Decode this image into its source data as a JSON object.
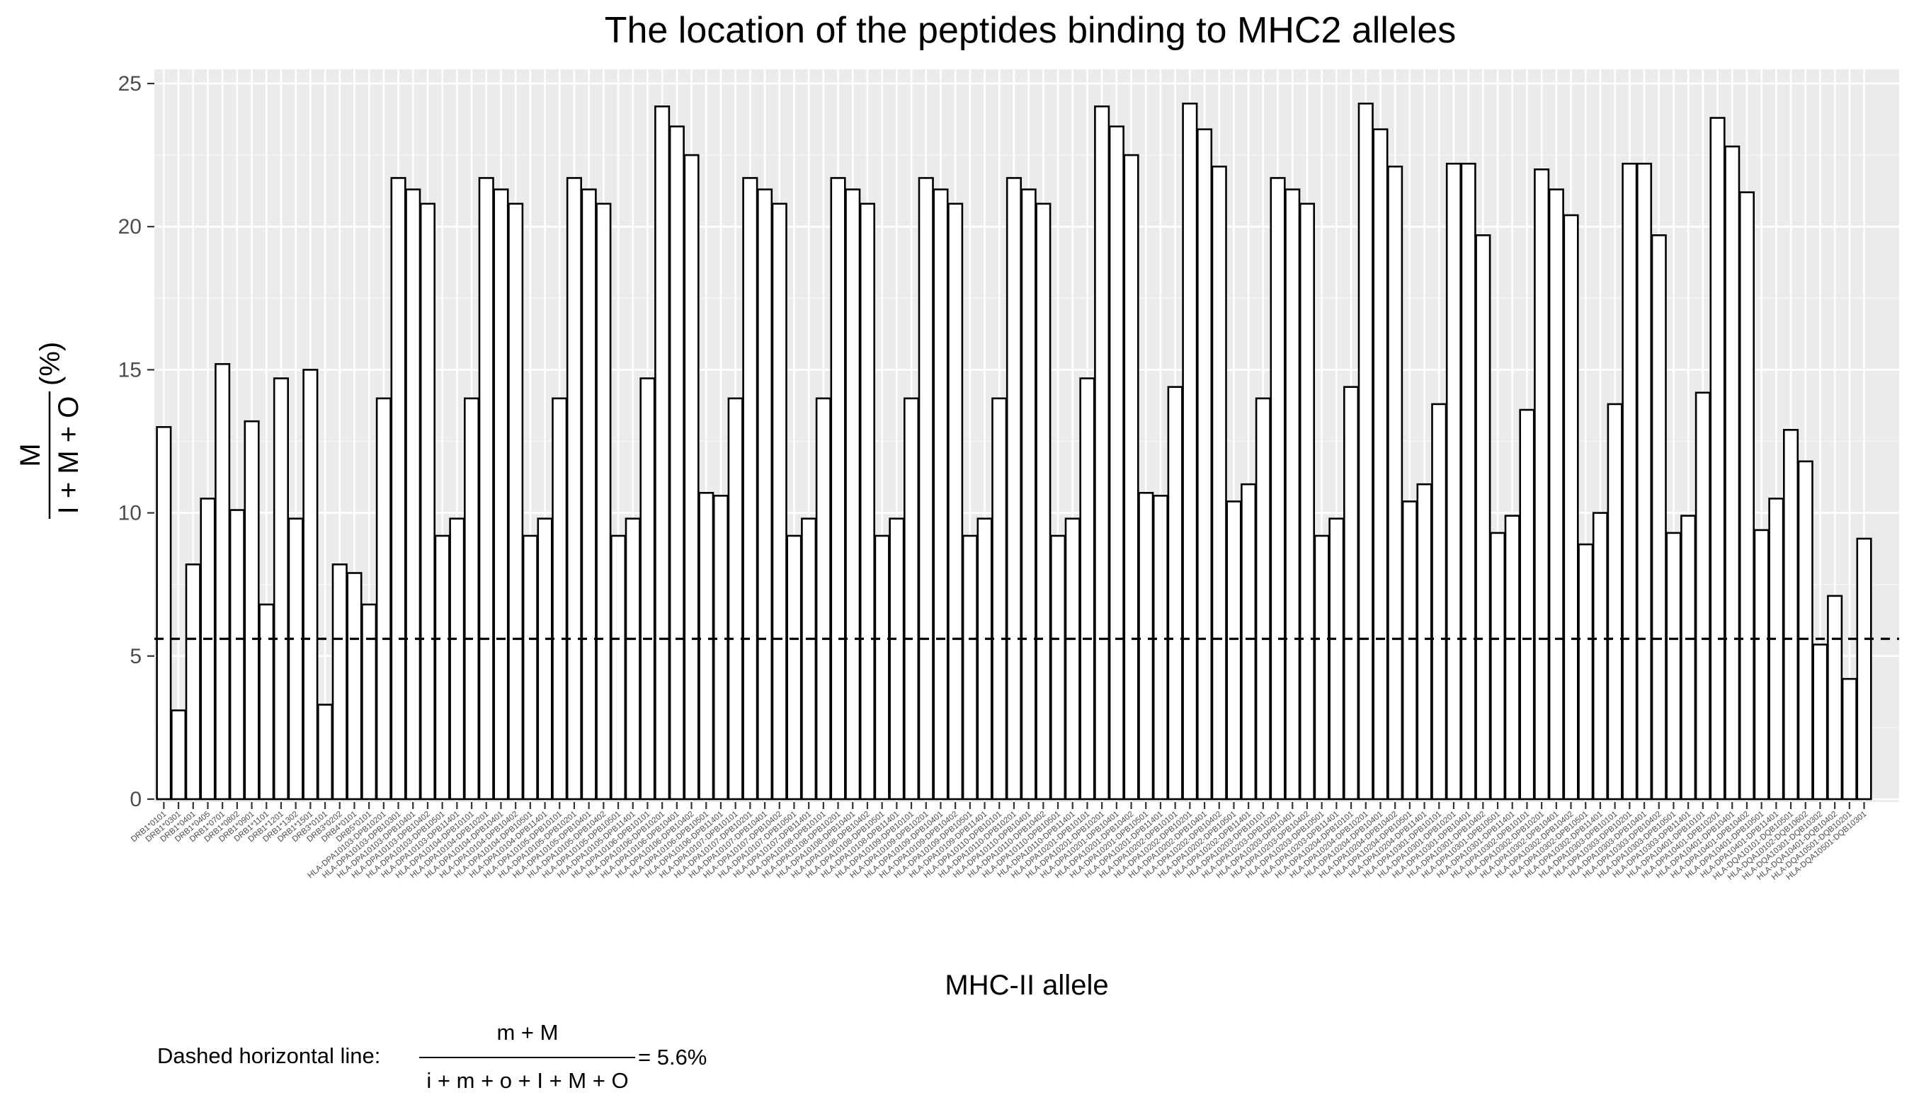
{
  "chart_data": {
    "type": "bar",
    "title": "The location of the peptides binding to MHC2 alleles",
    "xlabel": "MHC-II allele",
    "ylabel": {
      "numerator": "M",
      "denominator": "I + M + O",
      "suffix": "(%)"
    },
    "ylim": [
      0,
      25
    ],
    "yticks": [
      "0",
      "5",
      "10",
      "15",
      "20",
      "25"
    ],
    "grid": true,
    "reference_line": {
      "value": 5.6,
      "style": "dashed"
    },
    "categories": [
      "DRB1*0101",
      "DRB1*0301",
      "DRB1*0401",
      "DRB1*0405",
      "DRB1*0701",
      "DRB1*0802",
      "DRB1*0901",
      "DRB1*1101",
      "DRB1*1201",
      "DRB1*1302",
      "DRB1*1501",
      "DRB3*0101",
      "DRB3*0202",
      "DRB4*0101",
      "DRB5*0101",
      "HLA-DPA10103-DPB10201",
      "HLA-DPA10103-DPB10301",
      "HLA-DPA10103-DPB10401",
      "HLA-DPA10103-DPB10402",
      "HLA-DPA10103-DPB10501",
      "HLA-DPA10103-DPB11401",
      "HLA-DPA10104-DPB10101",
      "HLA-DPA10104-DPB10201",
      "HLA-DPA10104-DPB10401",
      "HLA-DPA10104-DPB10402",
      "HLA-DPA10104-DPB10501",
      "HLA-DPA10104-DPB11401",
      "HLA-DPA10105-DPB10101",
      "HLA-DPA10105-DPB10201",
      "HLA-DPA10105-DPB10401",
      "HLA-DPA10105-DPB10402",
      "HLA-DPA10105-DPB10501",
      "HLA-DPA10105-DPB11401",
      "HLA-DPA10106-DPB10101",
      "HLA-DPA10106-DPB10201",
      "HLA-DPA10106-DPB10401",
      "HLA-DPA10106-DPB10402",
      "HLA-DPA10106-DPB10501",
      "HLA-DPA10106-DPB11401",
      "HLA-DPA10107-DPB10101",
      "HLA-DPA10107-DPB10201",
      "HLA-DPA10107-DPB10401",
      "HLA-DPA10107-DPB10402",
      "HLA-DPA10107-DPB10501",
      "HLA-DPA10107-DPB11401",
      "HLA-DPA10108-DPB10101",
      "HLA-DPA10108-DPB10201",
      "HLA-DPA10108-DPB10401",
      "HLA-DPA10108-DPB10402",
      "HLA-DPA10108-DPB10501",
      "HLA-DPA10108-DPB11401",
      "HLA-DPA10109-DPB10101",
      "HLA-DPA10109-DPB10201",
      "HLA-DPA10109-DPB10401",
      "HLA-DPA10109-DPB10402",
      "HLA-DPA10109-DPB10501",
      "HLA-DPA10109-DPB11401",
      "HLA-DPA10110-DPB10101",
      "HLA-DPA10110-DPB10201",
      "HLA-DPA10110-DPB10401",
      "HLA-DPA10110-DPB10402",
      "HLA-DPA10110-DPB10501",
      "HLA-DPA10110-DPB11401",
      "HLA-DPA10201-DPB10101",
      "HLA-DPA10201-DPB10201",
      "HLA-DPA10201-DPB10401",
      "HLA-DPA10201-DPB10402",
      "HLA-DPA10201-DPB10501",
      "HLA-DPA10201-DPB11401",
      "HLA-DPA10202-DPB10101",
      "HLA-DPA10202-DPB10201",
      "HLA-DPA10202-DPB10401",
      "HLA-DPA10202-DPB10402",
      "HLA-DPA10202-DPB10501",
      "HLA-DPA10202-DPB11401",
      "HLA-DPA10203-DPB10101",
      "HLA-DPA10203-DPB10201",
      "HLA-DPA10203-DPB10401",
      "HLA-DPA10203-DPB10402",
      "HLA-DPA10203-DPB10501",
      "HLA-DPA10203-DPB11401",
      "HLA-DPA10204-DPB10101",
      "HLA-DPA10204-DPB10201",
      "HLA-DPA10204-DPB10401",
      "HLA-DPA10204-DPB10402",
      "HLA-DPA10204-DPB10501",
      "HLA-DPA10204-DPB11401",
      "HLA-DPA10301-DPB10101",
      "HLA-DPA10301-DPB10201",
      "HLA-DPA10301-DPB10401",
      "HLA-DPA10301-DPB10402",
      "HLA-DPA10301-DPB10501",
      "HLA-DPA10301-DPB11401",
      "HLA-DPA10302-DPB10101",
      "HLA-DPA10302-DPB10201",
      "HLA-DPA10302-DPB10401",
      "HLA-DPA10302-DPB10402",
      "HLA-DPA10302-DPB10501",
      "HLA-DPA10302-DPB11401",
      "HLA-DPA10303-DPB10101",
      "HLA-DPA10303-DPB10201",
      "HLA-DPA10303-DPB10401",
      "HLA-DPA10303-DPB10402",
      "HLA-DPA10303-DPB10501",
      "HLA-DPA10303-DPB11401",
      "HLA-DPA10401-DPB10101",
      "HLA-DPA10401-DPB10201",
      "HLA-DPA10401-DPB10401",
      "HLA-DPA10401-DPB10402",
      "HLA-DPA10401-DPB10501",
      "HLA-DPA10401-DPB11401",
      "HLA-DQA10101-DQB10501",
      "HLA-DQA10102-DQB10602",
      "HLA-DQA10301-DQB10302",
      "HLA-DQA10401-DQB10402",
      "HLA-DQA10501-DQB10201",
      "HLA-DQA10501-DQB10301"
    ],
    "values": [
      13.0,
      3.1,
      8.2,
      10.5,
      15.2,
      10.1,
      13.2,
      6.8,
      14.7,
      9.8,
      15.0,
      3.3,
      8.2,
      7.9,
      6.8,
      14.0,
      21.7,
      21.3,
      20.8,
      9.2,
      9.8,
      14.0,
      21.7,
      21.3,
      20.8,
      9.2,
      9.8,
      14.0,
      21.7,
      21.3,
      20.8,
      9.2,
      9.8,
      14.7,
      24.2,
      23.5,
      22.5,
      10.7,
      10.6,
      14.0,
      21.7,
      21.3,
      20.8,
      9.2,
      9.8,
      14.0,
      21.7,
      21.3,
      20.8,
      9.2,
      9.8,
      14.0,
      21.7,
      21.3,
      20.8,
      9.2,
      9.8,
      14.0,
      21.7,
      21.3,
      20.8,
      9.2,
      9.8,
      14.7,
      24.2,
      23.5,
      22.5,
      10.7,
      10.6,
      14.4,
      24.3,
      23.4,
      22.1,
      10.4,
      11.0,
      14.0,
      21.7,
      21.3,
      20.8,
      9.2,
      9.8,
      14.4,
      24.3,
      23.4,
      22.1,
      10.4,
      11.0,
      13.8,
      22.2,
      22.2,
      19.7,
      9.3,
      9.9,
      13.6,
      22.0,
      21.3,
      20.4,
      8.9,
      10.0,
      13.8,
      22.2,
      22.2,
      19.7,
      9.3,
      9.9,
      14.2,
      23.8,
      22.8,
      21.2,
      9.4,
      10.5,
      12.9,
      11.8,
      5.4,
      7.1,
      4.2,
      9.1
    ]
  },
  "annotation": {
    "prefix": "Dashed horizontal line:",
    "numerator": "m + M",
    "denominator": "i + m + o + I + M + O",
    "result": "= 5.6%"
  }
}
